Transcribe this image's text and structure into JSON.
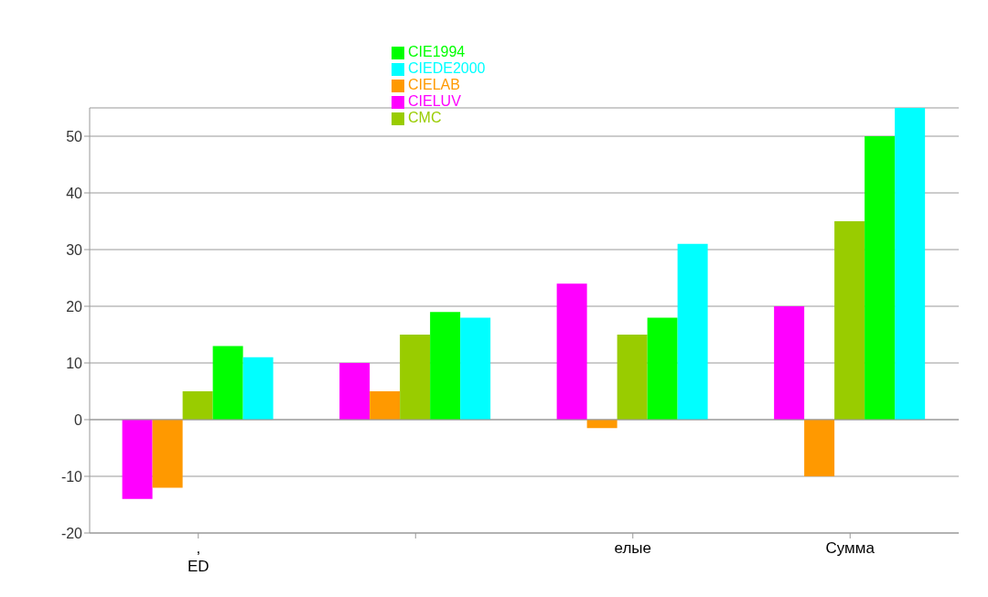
{
  "chart_data": {
    "type": "bar",
    "categories": [
      ",\nED",
      null,
      "елые",
      "Сумма"
    ],
    "series": [
      {
        "name": "CIELUV",
        "color": "#ff00ff",
        "values": [
          -14,
          10,
          24,
          20
        ]
      },
      {
        "name": "CIELAB",
        "color": "#ff9900",
        "values": [
          -12,
          5,
          -1.5,
          -10
        ]
      },
      {
        "name": "CMC",
        "color": "#99cc00",
        "values": [
          5,
          15,
          15,
          35
        ]
      },
      {
        "name": "CIE1994",
        "color": "#00ff00",
        "values": [
          13,
          19,
          18,
          50
        ]
      },
      {
        "name": "CIEDE2000",
        "color": "#00ffff",
        "values": [
          11,
          18,
          31,
          55
        ]
      }
    ],
    "ylim": [
      -20,
      55
    ],
    "yticks": [
      -20,
      -10,
      0,
      10,
      20,
      30,
      40,
      50
    ],
    "grid": "y",
    "legend": "top"
  }
}
